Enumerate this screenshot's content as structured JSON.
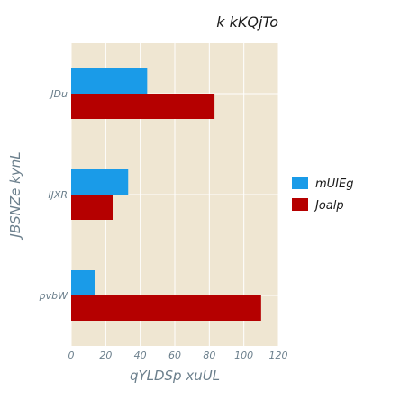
{
  "chart_data": {
    "type": "bar",
    "orientation": "horizontal",
    "title": "k kKQjTo",
    "xlabel": "qYLDSp  xuUL",
    "ylabel": "JBSNZe kynL",
    "categories": [
      "JDu",
      "IJXR",
      "pvbW"
    ],
    "series": [
      {
        "name": "mUIEg",
        "color": "#1a9be8",
        "values": [
          44,
          33,
          14
        ]
      },
      {
        "name": "Joalp",
        "color": "#b50000",
        "values": [
          83,
          24,
          110
        ]
      }
    ],
    "xlim": [
      0,
      120
    ],
    "xticks": [
      0,
      20,
      40,
      60,
      80,
      100,
      120
    ],
    "grid": true,
    "legend_position": "right",
    "plot_background": "#efe6d2",
    "grid_color": "#ffffff"
  }
}
